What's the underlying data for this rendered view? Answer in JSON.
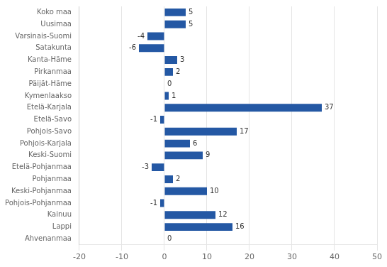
{
  "chart_data": {
    "type": "bar",
    "orientation": "horizontal",
    "categories": [
      "Koko maa",
      "Uusimaa",
      "Varsinais-Suomi",
      "Satakunta",
      "Kanta-Häme",
      "Pirkanmaa",
      "Päijät-Häme",
      "Kymenlaakso",
      "Etelä-Karjala",
      "Etelä-Savo",
      "Pohjois-Savo",
      "Pohjois-Karjala",
      "Keski-Suomi",
      "Etelä-Pohjanmaa",
      "Pohjanmaa",
      "Keski-Pohjanmaa",
      "Pohjois-Pohjanmaa",
      "Kainuu",
      "Lappi",
      "Ahvenanmaa"
    ],
    "values": [
      5,
      5,
      -4,
      -6,
      3,
      2,
      0,
      1,
      37,
      -1,
      17,
      6,
      9,
      -3,
      2,
      10,
      -1,
      12,
      16,
      0
    ],
    "color": "#2458A4",
    "xlim": [
      -20,
      50
    ],
    "xticks": [
      -20,
      -10,
      0,
      10,
      20,
      30,
      40,
      50
    ],
    "grid": true,
    "data_labels": true
  }
}
